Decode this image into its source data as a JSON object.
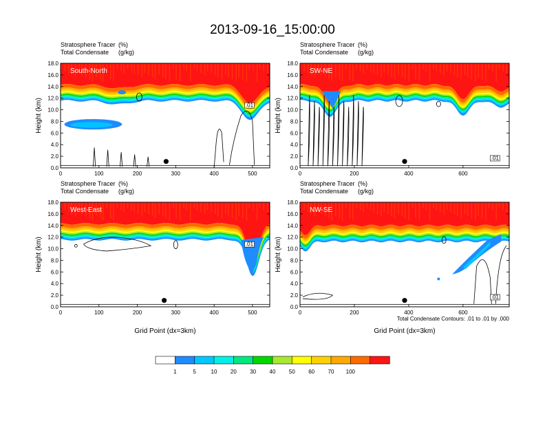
{
  "title": "2013-09-16_15:00:00",
  "chart_data": [
    {
      "type": "heatmap",
      "label": "South-North",
      "subtitle_lines": [
        {
          "left": "Stratosphere Tracer",
          "right": "(%)"
        },
        {
          "left": "Total Condensate",
          "right": "(g/kg)"
        }
      ],
      "ylabel": "Height (km)",
      "xlabel": "",
      "xlim": [
        0,
        545
      ],
      "ylim": [
        0,
        18
      ],
      "xticks": [
        "0",
        "100",
        "200",
        "300",
        "400",
        "500"
      ],
      "yticks": [
        "0.0",
        "2.0",
        "4.0",
        "6.0",
        "8.0",
        "10.0",
        "12.0",
        "14.0",
        "16.0",
        "18.0"
      ],
      "contour_label": ".01",
      "marker_x": 275,
      "marker_y": 1.1,
      "tropopause_km": 14.3,
      "features": [
        "dip near x=470-520 down to ~11 km",
        "cloud blob x=10-160 at 6.5-8.5 km"
      ]
    },
    {
      "type": "heatmap",
      "label": "SW-NE",
      "subtitle_lines": [
        {
          "left": "Stratosphere Tracer",
          "right": "(%)"
        },
        {
          "left": "Total Condensate",
          "right": "(g/kg)"
        }
      ],
      "ylabel": "Height (km)",
      "xlabel": "",
      "xlim": [
        0,
        770
      ],
      "ylim": [
        0,
        18
      ],
      "xticks": [
        "0",
        "200",
        "400",
        "600"
      ],
      "yticks": [
        "0.0",
        "2.0",
        "4.0",
        "6.0",
        "8.0",
        "10.0",
        "12.0",
        "14.0",
        "16.0",
        "18.0"
      ],
      "contour_label": ".01",
      "marker_x": 385,
      "marker_y": 1.1,
      "tropopause_km": 14.3,
      "features": [
        "dip near x=80-150 to ~11 km",
        "dip near x=560-620 to ~11 km"
      ]
    },
    {
      "type": "heatmap",
      "label": "West-East",
      "subtitle_lines": [
        {
          "left": "Stratosphere Tracer",
          "right": "(%)"
        },
        {
          "left": "Total Condensate",
          "right": "(g/kg)"
        }
      ],
      "ylabel": "Height (km)",
      "xlabel": "Grid Point (dx=3km)",
      "xlim": [
        0,
        545
      ],
      "ylim": [
        0,
        18
      ],
      "xticks": [
        "0",
        "100",
        "200",
        "300",
        "400",
        "500"
      ],
      "yticks": [
        "0.0",
        "2.0",
        "4.0",
        "6.0",
        "8.0",
        "10.0",
        "12.0",
        "14.0",
        "16.0",
        "18.0"
      ],
      "contour_label": ".01",
      "marker_x": 270,
      "marker_y": 1.1,
      "tropopause_km": 14.3,
      "features": [
        "dip near x=480-530 down to ~6 km"
      ]
    },
    {
      "type": "heatmap",
      "label": "NW-SE",
      "subtitle_lines": [
        {
          "left": "Stratosphere Tracer",
          "right": "(%)"
        },
        {
          "left": "Total Condensate",
          "right": "(g/kg)"
        }
      ],
      "ylabel": "Height (km)",
      "xlabel": "Grid Point (dx=3km)",
      "xlim": [
        0,
        770
      ],
      "ylim": [
        0,
        18
      ],
      "xticks": [
        "0",
        "200",
        "400",
        "600"
      ],
      "yticks": [
        "0.0",
        "2.0",
        "4.0",
        "6.0",
        "8.0",
        "10.0",
        "12.0",
        "14.0",
        "16.0",
        "18.0"
      ],
      "contour_label": ".01",
      "marker_x": 385,
      "marker_y": 1.1,
      "tropopause_km": 14.0,
      "features": [
        "tongue from x=560 to 740 descending to ~5.5 km"
      ],
      "note": "Total Condensate Contours: .01 to .01 by .000"
    }
  ],
  "colorbar": {
    "levels": [
      "1",
      "5",
      "10",
      "20",
      "30",
      "40",
      "50",
      "60",
      "70",
      "100"
    ],
    "colors": [
      "#ffffff",
      "#1e8cff",
      "#00c8ff",
      "#00ffff",
      "#00ee80",
      "#00e600",
      "#a0f020",
      "#ffff00",
      "#ffd000",
      "#ffa000",
      "#ff6000",
      "#ff0000"
    ]
  },
  "colorbar_colors_display": [
    "#ffffff",
    "#1e8cff",
    "#00c8ff",
    "#00f0e8",
    "#00e880",
    "#00d800",
    "#a8e830",
    "#ffff00",
    "#ffd000",
    "#ffa800",
    "#ff6a00",
    "#ff1414"
  ]
}
